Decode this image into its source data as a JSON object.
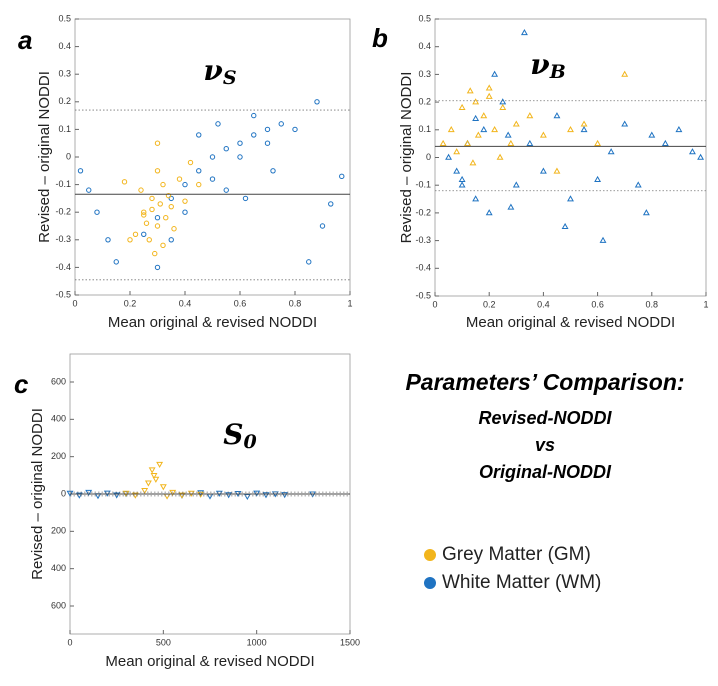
{
  "chart_data": [
    {
      "type": "scatter",
      "panel": "a",
      "title": "ν",
      "title_subscript": "S",
      "marker": "circle",
      "x_label": "Mean original & revised NODDI",
      "y_label": "Revised – original NODDI",
      "xlim": [
        0,
        1
      ],
      "ylim": [
        -0.5,
        0.5
      ],
      "xticks": [
        0,
        0.2,
        0.4,
        0.6,
        0.8,
        1
      ],
      "yticks": [
        -0.5,
        -0.4,
        -0.3,
        -0.2,
        -0.1,
        0,
        0.1,
        0.2,
        0.3,
        0.4,
        0.5
      ],
      "mean_line": -0.135,
      "limit_lines": [
        -0.445,
        0.17
      ],
      "series": [
        {
          "name": "White Matter (WM)",
          "color": "#1f73c2",
          "x": [
            0.02,
            0.05,
            0.08,
            0.12,
            0.15,
            0.85,
            0.9,
            0.93,
            0.97,
            0.25,
            0.3,
            0.35,
            0.4,
            0.45,
            0.5,
            0.55,
            0.6,
            0.65,
            0.7,
            0.75,
            0.8,
            0.5,
            0.6,
            0.7,
            0.4,
            0.35,
            0.55,
            0.65,
            0.45,
            0.3,
            0.88,
            0.62,
            0.72,
            0.52
          ],
          "values": [
            -0.05,
            -0.12,
            -0.2,
            -0.3,
            -0.38,
            -0.38,
            -0.25,
            -0.17,
            -0.07,
            -0.28,
            -0.22,
            -0.15,
            -0.1,
            -0.05,
            0,
            0.03,
            0.05,
            0.08,
            0.1,
            0.12,
            0.1,
            -0.08,
            0,
            0.05,
            -0.2,
            -0.3,
            -0.12,
            0.15,
            0.08,
            -0.4,
            0.2,
            -0.15,
            -0.05,
            0.12
          ]
        },
        {
          "name": "Grey Matter (GM)",
          "color": "#f2b51c",
          "x": [
            0.25,
            0.28,
            0.3,
            0.32,
            0.22,
            0.35,
            0.27,
            0.3,
            0.33,
            0.24,
            0.29,
            0.31,
            0.38,
            0.26,
            0.34,
            0.2,
            0.36,
            0.28,
            0.42,
            0.3,
            0.45,
            0.32,
            0.25,
            0.4,
            0.18
          ],
          "values": [
            -0.2,
            -0.15,
            -0.25,
            -0.1,
            -0.28,
            -0.18,
            -0.3,
            -0.05,
            -0.22,
            -0.12,
            -0.35,
            -0.17,
            -0.08,
            -0.24,
            -0.14,
            -0.3,
            -0.26,
            -0.19,
            -0.02,
            0.05,
            -0.1,
            -0.32,
            -0.21,
            -0.16,
            -0.09
          ]
        }
      ]
    },
    {
      "type": "scatter",
      "panel": "b",
      "title": "ν",
      "title_subscript": "B",
      "marker": "triangle",
      "x_label": "Mean original & revised NODDI",
      "y_label": "Revised – original NODDI",
      "xlim": [
        0,
        1
      ],
      "ylim": [
        -0.5,
        0.5
      ],
      "xticks": [
        0,
        0.2,
        0.4,
        0.6,
        0.8,
        1
      ],
      "yticks": [
        -0.5,
        -0.4,
        -0.3,
        -0.2,
        -0.1,
        0,
        0.1,
        0.2,
        0.3,
        0.4,
        0.5
      ],
      "mean_line": 0.04,
      "limit_lines": [
        -0.12,
        0.205
      ],
      "series": [
        {
          "color": "#1f73c2",
          "x": [
            0.05,
            0.08,
            0.1,
            0.12,
            0.15,
            0.18,
            0.2,
            0.25,
            0.3,
            0.35,
            0.4,
            0.45,
            0.5,
            0.55,
            0.6,
            0.65,
            0.7,
            0.75,
            0.8,
            0.85,
            0.9,
            0.95,
            0.98,
            0.22,
            0.28,
            0.15,
            0.1,
            0.33,
            0.48,
            0.62,
            0.27,
            0.78
          ],
          "values": [
            0,
            -0.05,
            -0.1,
            0.05,
            -0.15,
            0.1,
            -0.2,
            0.2,
            -0.1,
            0.05,
            -0.05,
            0.15,
            -0.15,
            0.1,
            -0.08,
            0.02,
            0.12,
            -0.1,
            0.08,
            0.05,
            0.1,
            0.02,
            0,
            0.3,
            -0.18,
            0.14,
            -0.08,
            0.45,
            -0.25,
            -0.3,
            0.08,
            -0.2
          ]
        },
        {
          "color": "#f2b51c",
          "x": [
            0.03,
            0.06,
            0.1,
            0.13,
            0.15,
            0.18,
            0.2,
            0.22,
            0.25,
            0.3,
            0.12,
            0.16,
            0.2,
            0.28,
            0.35,
            0.4,
            0.08,
            0.5,
            0.6,
            0.7,
            0.24,
            0.45,
            0.55,
            0.14
          ],
          "values": [
            0.05,
            0.1,
            0.18,
            0.24,
            0.2,
            0.15,
            0.25,
            0.1,
            0.18,
            0.12,
            0.05,
            0.08,
            0.22,
            0.05,
            0.15,
            0.08,
            0.02,
            0.1,
            0.05,
            0.3,
            0,
            -0.05,
            0.12,
            -0.02
          ]
        }
      ]
    },
    {
      "type": "scatter",
      "panel": "c",
      "title": "S",
      "title_subscript": "0",
      "marker": "triangle-down",
      "x_label": "Mean original & revised NODDI",
      "y_label": "Revised – original NODDI",
      "xlim": [
        0,
        1500
      ],
      "ylim": [
        -750,
        750
      ],
      "xticks": [
        0,
        500,
        1000,
        1500
      ],
      "yticks": [
        {
          "value": -600,
          "label": "600"
        },
        {
          "value": -400,
          "label": "400"
        },
        {
          "value": -200,
          "label": "200"
        },
        0,
        200,
        400,
        600
      ],
      "mean_line": 0,
      "limit_lines": [
        -10,
        10
      ],
      "series": [
        {
          "color": "#1f73c2",
          "x": [
            0,
            50,
            100,
            150,
            200,
            250,
            300,
            600,
            700,
            750,
            800,
            850,
            900,
            950,
            1000,
            1050,
            1100,
            1150,
            1300
          ],
          "values": [
            5,
            -5,
            10,
            -8,
            6,
            -4,
            3,
            -6,
            8,
            -10,
            5,
            -3,
            4,
            -12,
            6,
            -3,
            2,
            -2,
            1
          ]
        },
        {
          "color": "#f2b51c",
          "x": [
            300,
            350,
            400,
            420,
            450,
            480,
            500,
            520,
            550,
            600,
            650,
            700,
            440,
            460
          ],
          "values": [
            5,
            -5,
            20,
            60,
            100,
            160,
            40,
            -10,
            10,
            -5,
            5,
            0,
            130,
            80
          ]
        }
      ]
    }
  ],
  "heading": {
    "line1": "Parameters’ Comparison:",
    "line2": "Revised-NODDI",
    "line3": "vs",
    "line4": "Original-NODDI"
  }
}
